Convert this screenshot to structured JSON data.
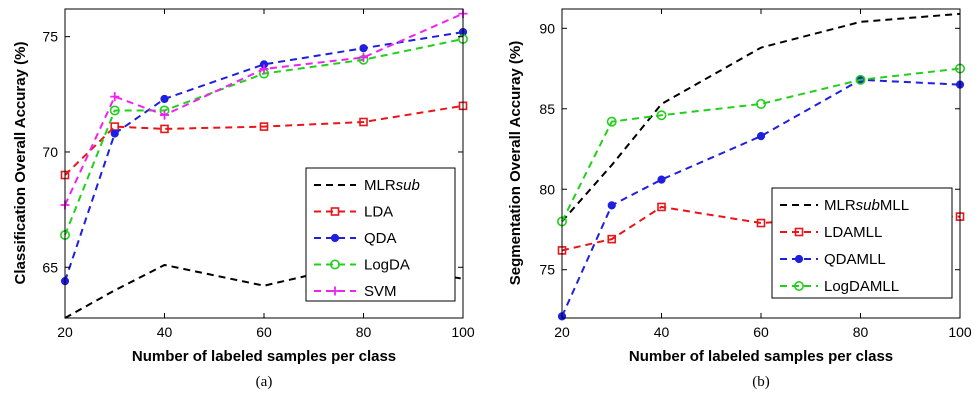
{
  "chart_data": [
    {
      "type": "line",
      "sublabel": "(a)",
      "xlabel": "Number of labeled samples per class",
      "ylabel": "Classification Overall Accuray (%)",
      "x": [
        20,
        30,
        40,
        60,
        80,
        100
      ],
      "xticks": [
        "20",
        "40",
        "60",
        "80",
        "100"
      ],
      "yticks": [
        "65",
        "70",
        "75"
      ],
      "xlim": [
        20,
        100
      ],
      "ylim": [
        62.8,
        76.2
      ],
      "legend_position": "bottom-right",
      "series": [
        {
          "name": "MLR",
          "name_suffix": "sub",
          "color": "#000000",
          "marker": "none",
          "values": [
            62.8,
            64.0,
            65.1,
            64.2,
            65.2,
            64.5
          ]
        },
        {
          "name": "LDA",
          "name_suffix": "",
          "color": "#e8161b",
          "marker": "square",
          "values": [
            69.0,
            71.1,
            71.0,
            71.1,
            71.3,
            72.0
          ]
        },
        {
          "name": "QDA",
          "name_suffix": "",
          "color": "#1f1fe0",
          "marker": "dot",
          "values": [
            64.4,
            70.8,
            72.3,
            73.8,
            74.5,
            75.2
          ]
        },
        {
          "name": "LogDA",
          "name_suffix": "",
          "color": "#22d01c",
          "marker": "circle",
          "values": [
            66.4,
            71.8,
            71.8,
            73.4,
            74.0,
            74.9
          ]
        },
        {
          "name": "SVM",
          "name_suffix": "",
          "color": "#f022f0",
          "marker": "plus",
          "values": [
            67.7,
            72.4,
            71.6,
            73.6,
            74.1,
            76.0
          ]
        }
      ]
    },
    {
      "type": "line",
      "sublabel": "(b)",
      "xlabel": "Number of labeled samples per class",
      "ylabel": "Segmentation Overall Accuray (%)",
      "x": [
        20,
        30,
        40,
        60,
        80,
        100
      ],
      "xticks": [
        "20",
        "40",
        "60",
        "80",
        "100"
      ],
      "yticks": [
        "75",
        "80",
        "85",
        "90"
      ],
      "xlim": [
        20,
        100
      ],
      "ylim": [
        72,
        91.2
      ],
      "legend_position": "bottom-right",
      "series": [
        {
          "name": "MLR",
          "name_suffix": "subMLL",
          "color": "#000000",
          "marker": "none",
          "values": [
            78.0,
            81.5,
            85.3,
            88.8,
            90.4,
            90.9
          ]
        },
        {
          "name": "LDAMLL",
          "name_suffix": "",
          "color": "#e8161b",
          "marker": "square",
          "values": [
            76.2,
            76.9,
            78.9,
            77.9,
            78.3,
            78.3
          ]
        },
        {
          "name": "QDAMLL",
          "name_suffix": "",
          "color": "#1f1fe0",
          "marker": "dot",
          "values": [
            72.1,
            79.0,
            80.6,
            83.3,
            86.8,
            86.5
          ]
        },
        {
          "name": "LogDAMLL",
          "name_suffix": "",
          "color": "#22d01c",
          "marker": "circle",
          "values": [
            78.0,
            84.2,
            84.6,
            85.3,
            86.8,
            87.5
          ]
        }
      ]
    }
  ]
}
